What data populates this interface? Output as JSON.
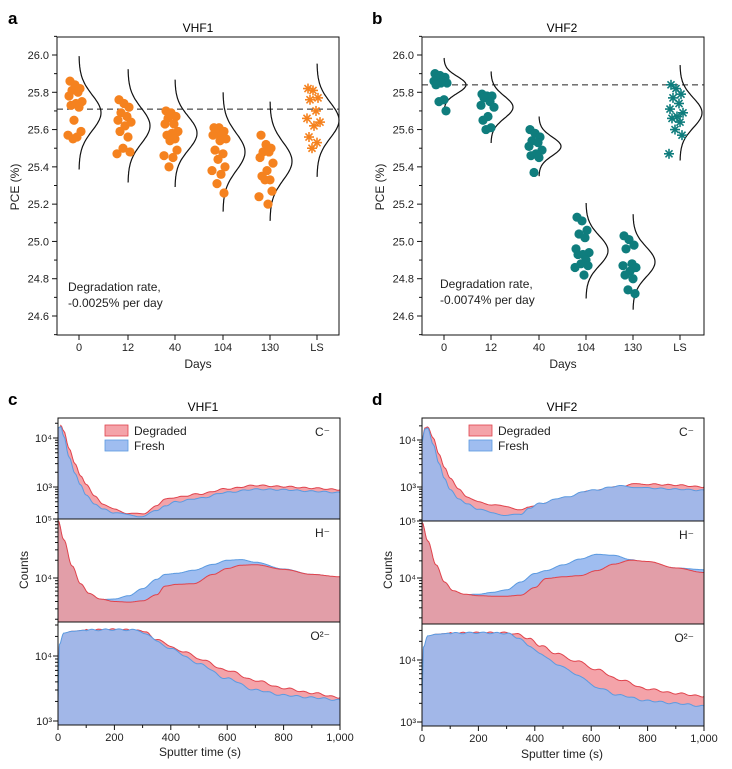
{
  "chart_data": [
    {
      "panel": "a",
      "type": "scatter",
      "title": "VHF1",
      "xlabel": "Days",
      "ylabel": "PCE (%)",
      "categories": [
        "0",
        "12",
        "40",
        "104",
        "130",
        "LS"
      ],
      "ylim": [
        24.5,
        26.1
      ],
      "yticks": [
        "26.0",
        "25.8",
        "25.6",
        "25.4",
        "25.2",
        "25.0",
        "24.8",
        "24.6"
      ],
      "reference_line": 25.71,
      "marker_color": "#f5821f",
      "annotation": [
        "Degradation rate,",
        "-0.0025% per day"
      ],
      "series": [
        {
          "name": "0",
          "marker": "circle",
          "values": [
            25.86,
            25.84,
            25.82,
            25.81,
            25.8,
            25.78,
            25.75,
            25.74,
            25.73,
            25.72,
            25.65,
            25.59,
            25.57,
            25.56,
            25.55
          ],
          "dist_mean": 25.69,
          "dist_sd": 0.095
        },
        {
          "name": "12",
          "marker": "circle",
          "values": [
            25.76,
            25.74,
            25.72,
            25.69,
            25.67,
            25.65,
            25.64,
            25.62,
            25.59,
            25.56,
            25.5,
            25.48,
            25.47
          ],
          "dist_mean": 25.62,
          "dist_sd": 0.095
        },
        {
          "name": "40",
          "marker": "circle",
          "values": [
            25.7,
            25.69,
            25.67,
            25.66,
            25.63,
            25.63,
            25.59,
            25.58,
            25.57,
            25.55,
            25.54,
            25.49,
            25.46,
            25.45,
            25.4
          ],
          "dist_mean": 25.58,
          "dist_sd": 0.09
        },
        {
          "name": "104",
          "marker": "circle",
          "values": [
            25.61,
            25.61,
            25.59,
            25.58,
            25.57,
            25.57,
            25.55,
            25.54,
            25.49,
            25.47,
            25.44,
            25.4,
            25.38,
            25.36,
            25.31,
            25.26
          ],
          "dist_mean": 25.48,
          "dist_sd": 0.1
        },
        {
          "name": "130",
          "marker": "circle",
          "values": [
            25.57,
            25.52,
            25.5,
            25.48,
            25.48,
            25.45,
            25.42,
            25.38,
            25.35,
            25.33,
            25.33,
            25.27,
            25.24,
            25.2
          ],
          "dist_mean": 25.43,
          "dist_sd": 0.1
        },
        {
          "name": "LS",
          "marker": "asterisk",
          "values": [
            25.82,
            25.81,
            25.77,
            25.76,
            25.7,
            25.66,
            25.64,
            25.62,
            25.56,
            25.53,
            25.5
          ],
          "dist_mean": 25.65,
          "dist_sd": 0.095
        }
      ]
    },
    {
      "panel": "b",
      "type": "scatter",
      "title": "VHF2",
      "xlabel": "Days",
      "ylabel": "PCE (%)",
      "categories": [
        "0",
        "12",
        "40",
        "104",
        "130",
        "LS"
      ],
      "ylim": [
        24.5,
        26.1
      ],
      "yticks": [
        "26.0",
        "25.8",
        "25.6",
        "25.4",
        "25.2",
        "25.0",
        "24.8",
        "24.6"
      ],
      "reference_line": 25.84,
      "marker_color": "#0f7d7d",
      "annotation": [
        "Degradation rate,",
        "-0.0074% per day"
      ],
      "series": [
        {
          "name": "0",
          "marker": "circle",
          "values": [
            25.9,
            25.89,
            25.88,
            25.87,
            25.86,
            25.86,
            25.85,
            25.85,
            25.84,
            25.76,
            25.75,
            25.7
          ],
          "dist_mean": 25.84,
          "dist_sd": 0.045
        },
        {
          "name": "12",
          "marker": "circle",
          "values": [
            25.79,
            25.78,
            25.78,
            25.77,
            25.75,
            25.73,
            25.72,
            25.67,
            25.65,
            25.61,
            25.6
          ],
          "dist_mean": 25.72,
          "dist_sd": 0.06
        },
        {
          "name": "40",
          "marker": "circle",
          "values": [
            25.6,
            25.58,
            25.56,
            25.54,
            25.53,
            25.51,
            25.49,
            25.47,
            25.46,
            25.45,
            25.37
          ],
          "dist_mean": 25.51,
          "dist_sd": 0.05
        },
        {
          "name": "104",
          "marker": "circle",
          "values": [
            25.13,
            25.11,
            25.06,
            25.04,
            25.02,
            24.96,
            24.94,
            24.93,
            24.93,
            24.9,
            24.88,
            24.87,
            24.86,
            24.82
          ],
          "dist_mean": 24.95,
          "dist_sd": 0.08
        },
        {
          "name": "130",
          "marker": "circle",
          "values": [
            25.03,
            25.01,
            24.98,
            24.96,
            24.88,
            24.87,
            24.86,
            24.84,
            24.82,
            24.8,
            24.74,
            24.72
          ],
          "dist_mean": 24.89,
          "dist_sd": 0.08
        },
        {
          "name": "LS",
          "marker": "asterisk",
          "values": [
            25.84,
            25.82,
            25.79,
            25.77,
            25.74,
            25.71,
            25.69,
            25.67,
            25.66,
            25.64,
            25.6,
            25.57,
            25.47
          ],
          "dist_mean": 25.69,
          "dist_sd": 0.08
        }
      ]
    },
    {
      "panel": "c",
      "type": "area",
      "title": "VHF1",
      "xlabel": "Sputter time (s)",
      "ylabel": "Counts",
      "xlim": [
        0,
        1000
      ],
      "xticks": [
        "0",
        "200",
        "400",
        "600",
        "800",
        "1,000"
      ],
      "legend": {
        "position": "top-left",
        "entries": [
          "Degraded",
          "Fresh"
        ]
      },
      "colors": {
        "Degraded": "#f4a3a9",
        "Degraded_edge": "#e0434c",
        "Fresh": "#9fbdf0",
        "Fresh_edge": "#5b9ae0",
        "overlap_bottom": "#a2b7e8",
        "overlap_h": "#e29ea8"
      },
      "subplots": [
        {
          "ion": "C⁻",
          "yscale": "log",
          "ylim": [
            150,
            25000
          ],
          "ytick_labels": [
            "10⁴",
            "10³"
          ],
          "ytick_values": [
            10000,
            1000
          ],
          "x": [
            0,
            10,
            20,
            40,
            60,
            80,
            100,
            130,
            160,
            200,
            250,
            300,
            350,
            380,
            420,
            500,
            600,
            700,
            800,
            900,
            1000
          ],
          "series": [
            {
              "name": "Degraded",
              "values": [
                12000,
                18000,
                14000,
                6000,
                3000,
                1700,
                1100,
                650,
                450,
                350,
                290,
                280,
                420,
                560,
                620,
                720,
                920,
                1080,
                1020,
                950,
                880
              ]
            },
            {
              "name": "Fresh",
              "values": [
                16000,
                17000,
                11000,
                4000,
                1900,
                1100,
                700,
                450,
                350,
                300,
                270,
                250,
                330,
                420,
                500,
                590,
                780,
                900,
                880,
                820,
                770
              ]
            }
          ]
        },
        {
          "ion": "H⁻",
          "yscale": "log",
          "ylim": [
            1700,
            100000
          ],
          "ytick_labels": [
            "10⁵",
            "10⁴"
          ],
          "ytick_values": [
            100000,
            10000
          ],
          "x": [
            0,
            20,
            50,
            80,
            110,
            150,
            200,
            250,
            300,
            350,
            380,
            420,
            480,
            550,
            600,
            650,
            700,
            800,
            900,
            1000
          ],
          "series": [
            {
              "name": "Degraded",
              "values": [
                95000,
                45000,
                16000,
                8000,
                5500,
                4400,
                4000,
                3900,
                4100,
                5200,
                7300,
                7800,
                8000,
                11500,
                14500,
                16500,
                16800,
                14000,
                11500,
                10500
              ]
            },
            {
              "name": "Fresh",
              "values": [
                95000,
                42000,
                15000,
                7500,
                5200,
                4300,
                4400,
                5000,
                6600,
                9500,
                11500,
                12000,
                13500,
                17000,
                20000,
                20500,
                18500,
                14200,
                11500,
                10300
              ]
            }
          ]
        },
        {
          "ion": "O²⁻",
          "yscale": "log",
          "ylim": [
            1000,
            35000
          ],
          "ytick_labels": [
            "10⁴",
            "10³"
          ],
          "ytick_values": [
            10000,
            1000
          ],
          "x": [
            0,
            5,
            20,
            50,
            100,
            200,
            280,
            310,
            350,
            400,
            450,
            500,
            600,
            700,
            800,
            900,
            1000
          ],
          "series": [
            {
              "name": "Degraded",
              "values": [
                2000,
                14000,
                22000,
                24000,
                25000,
                25500,
                25000,
                23000,
                18000,
                14000,
                11500,
                9000,
                6000,
                4200,
                3200,
                2700,
                2300
              ]
            },
            {
              "name": "Fresh",
              "values": [
                2000,
                15000,
                22500,
                24000,
                25000,
                25500,
                25000,
                22500,
                17000,
                13000,
                10000,
                7500,
                4500,
                3000,
                2500,
                2300,
                2100
              ]
            }
          ]
        }
      ]
    },
    {
      "panel": "d",
      "type": "area",
      "title": "VHF2",
      "xlabel": "Sputter time (s)",
      "ylabel": "Counts",
      "xlim": [
        0,
        1000
      ],
      "xticks": [
        "0",
        "200",
        "400",
        "600",
        "800",
        "1,000"
      ],
      "legend": {
        "position": "top-left",
        "entries": [
          "Degraded",
          "Fresh"
        ]
      },
      "colors": {
        "Degraded": "#f4a3a9",
        "Degraded_edge": "#e0434c",
        "Fresh": "#9fbdf0",
        "Fresh_edge": "#5b9ae0",
        "overlap_bottom": "#a2b7e8",
        "overlap_h": "#e29ea8"
      },
      "subplots": [
        {
          "ion": "C⁻",
          "yscale": "log",
          "ylim": [
            150,
            25000
          ],
          "ytick_labels": [
            "10⁴",
            "10³"
          ],
          "ytick_values": [
            10000,
            1000
          ],
          "x": [
            0,
            10,
            20,
            40,
            60,
            80,
            100,
            130,
            160,
            200,
            250,
            300,
            350,
            380,
            420,
            500,
            600,
            700,
            750,
            800,
            900,
            1000
          ],
          "series": [
            {
              "name": "Degraded",
              "values": [
                9000,
                18000,
                19000,
                11000,
                5000,
                2600,
                1500,
                900,
                620,
                480,
                420,
                380,
                330,
                370,
                430,
                560,
                820,
                1000,
                1150,
                1150,
                1100,
                1000
              ]
            },
            {
              "name": "Fresh",
              "values": [
                9000,
                17000,
                18000,
                8000,
                3200,
                1500,
                900,
                560,
                430,
                340,
                280,
                250,
                260,
                360,
                450,
                600,
                850,
                1050,
                1000,
                950,
                900,
                850
              ]
            }
          ]
        },
        {
          "ion": "H⁻",
          "yscale": "log",
          "ylim": [
            1700,
            100000
          ],
          "ytick_labels": [
            "10⁵",
            "10⁴"
          ],
          "ytick_values": [
            100000,
            10000
          ],
          "x": [
            0,
            20,
            50,
            80,
            110,
            150,
            200,
            250,
            300,
            350,
            400,
            440,
            500,
            560,
            620,
            680,
            740,
            800,
            900,
            1000
          ],
          "series": [
            {
              "name": "Degraded",
              "values": [
                95000,
                45000,
                17000,
                8500,
                6000,
                5200,
                4900,
                4800,
                4800,
                5000,
                6800,
                9800,
                10500,
                11000,
                13500,
                17500,
                20500,
                19500,
                15000,
                12500
              ]
            },
            {
              "name": "Fresh",
              "values": [
                95000,
                42000,
                15000,
                8000,
                5800,
                5100,
                5200,
                5600,
                6200,
                8500,
                12000,
                13500,
                17000,
                21500,
                26000,
                25000,
                21000,
                18000,
                15000,
                14000
              ]
            }
          ]
        },
        {
          "ion": "O²⁻",
          "yscale": "log",
          "ylim": [
            1000,
            35000
          ],
          "ytick_labels": [
            "10⁴",
            "10³"
          ],
          "ytick_values": [
            10000,
            1000
          ],
          "x": [
            0,
            5,
            20,
            50,
            100,
            200,
            300,
            340,
            380,
            420,
            480,
            550,
            620,
            700,
            800,
            900,
            1000
          ],
          "series": [
            {
              "name": "Degraded",
              "values": [
                2000,
                15000,
                24000,
                26000,
                27000,
                27500,
                27500,
                26000,
                22000,
                17000,
                12500,
                9500,
                7000,
                4800,
                3400,
                2900,
                2600
              ]
            },
            {
              "name": "Fresh",
              "values": [
                2000,
                16000,
                24500,
                26000,
                27000,
                27500,
                27000,
                23000,
                17000,
                12500,
                8500,
                5800,
                3600,
                2700,
                2200,
                2000,
                1800
              ]
            }
          ]
        }
      ]
    }
  ],
  "panel_labels": [
    "a",
    "b",
    "c",
    "d"
  ]
}
